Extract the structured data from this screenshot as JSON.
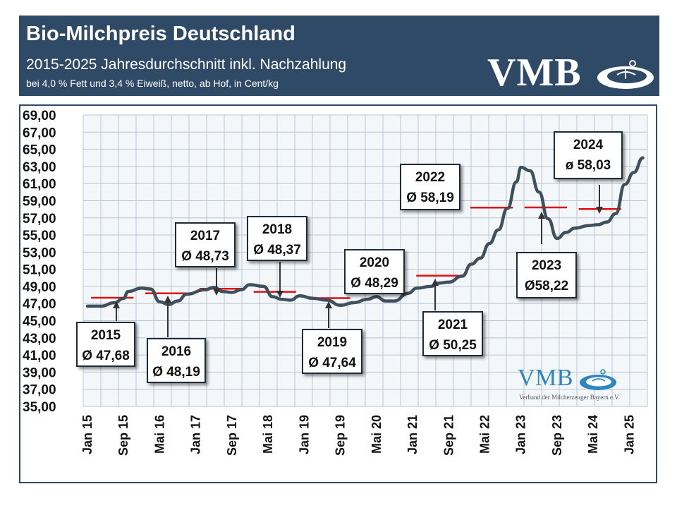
{
  "header": {
    "title": "Bio-Milchpreis Deutschland",
    "subtitle": "2015-2025 Jahresdurchschnitt inkl. Nachzahlung",
    "note": "bei 4,0 % Fett und 3,4 % Eiweiß, netto, ab Hof, in Cent/kg",
    "logo_text": "VMB"
  },
  "logo_bottom": {
    "text": "VMB",
    "tagline": "Verband der Milcherzeuger Bayern e.V."
  },
  "colors": {
    "header_bg": "#2f4a66",
    "line": "#3f4f5c",
    "average": "#e01010",
    "plot_bg": "#f3f7fa",
    "grid": "#b9c6d1"
  },
  "chart_data": {
    "type": "line",
    "title": "Bio-Milchpreis Deutschland",
    "y_unit": "Cent/kg",
    "ylim": [
      35,
      69
    ],
    "grid": true,
    "y_ticks": [
      "35,00",
      "37,00",
      "39,00",
      "41,00",
      "43,00",
      "45,00",
      "47,00",
      "49,00",
      "51,00",
      "53,00",
      "55,00",
      "57,00",
      "59,00",
      "61,00",
      "63,00",
      "65,00",
      "67,00",
      "69,00"
    ],
    "x_ticks": [
      "Jan 15",
      "Sep 15",
      "Mai 16",
      "Jan 17",
      "Sep 17",
      "Mai 18",
      "Jan 19",
      "Sep 19",
      "Mai 20",
      "Jan 21",
      "Sep 21",
      "Mai 22",
      "Jan 23",
      "Sep 23",
      "Mai 24",
      "Jan 25"
    ],
    "series": [
      {
        "values_by_month": [
          {
            "x": "2015-01",
            "y": 46.7
          },
          {
            "x": "2015-04",
            "y": 46.7
          },
          {
            "x": "2015-07",
            "y": 47.1
          },
          {
            "x": "2015-09",
            "y": 47.6
          },
          {
            "x": "2015-10",
            "y": 48.4
          },
          {
            "x": "2016-01",
            "y": 48.8
          },
          {
            "x": "2016-03",
            "y": 48.7
          },
          {
            "x": "2016-05",
            "y": 47.2
          },
          {
            "x": "2016-07",
            "y": 46.9
          },
          {
            "x": "2016-09",
            "y": 47.3
          },
          {
            "x": "2016-11",
            "y": 48.1
          },
          {
            "x": "2017-03",
            "y": 48.6
          },
          {
            "x": "2017-05",
            "y": 48.9
          },
          {
            "x": "2017-07",
            "y": 48.4
          },
          {
            "x": "2017-09",
            "y": 48.3
          },
          {
            "x": "2017-11",
            "y": 48.6
          },
          {
            "x": "2018-01",
            "y": 49.2
          },
          {
            "x": "2018-04",
            "y": 49.0
          },
          {
            "x": "2018-06",
            "y": 47.8
          },
          {
            "x": "2018-08",
            "y": 47.5
          },
          {
            "x": "2018-10",
            "y": 47.4
          },
          {
            "x": "2018-12",
            "y": 47.9
          },
          {
            "x": "2019-03",
            "y": 47.6
          },
          {
            "x": "2019-06",
            "y": 47.4
          },
          {
            "x": "2019-09",
            "y": 46.8
          },
          {
            "x": "2019-12",
            "y": 47.1
          },
          {
            "x": "2020-03",
            "y": 47.5
          },
          {
            "x": "2020-05",
            "y": 47.8
          },
          {
            "x": "2020-07",
            "y": 47.3
          },
          {
            "x": "2020-09",
            "y": 47.3
          },
          {
            "x": "2020-12",
            "y": 48.2
          },
          {
            "x": "2021-02",
            "y": 48.8
          },
          {
            "x": "2021-05",
            "y": 49.0
          },
          {
            "x": "2021-07",
            "y": 49.4
          },
          {
            "x": "2021-09",
            "y": 49.5
          },
          {
            "x": "2021-12",
            "y": 50.2
          },
          {
            "x": "2022-02",
            "y": 51.6
          },
          {
            "x": "2022-04",
            "y": 52.3
          },
          {
            "x": "2022-06",
            "y": 54.0
          },
          {
            "x": "2022-08",
            "y": 55.6
          },
          {
            "x": "2022-10",
            "y": 58.1
          },
          {
            "x": "2022-12",
            "y": 61.2
          },
          {
            "x": "2023-01",
            "y": 62.9
          },
          {
            "x": "2023-03",
            "y": 62.5
          },
          {
            "x": "2023-05",
            "y": 60.0
          },
          {
            "x": "2023-07",
            "y": 56.9
          },
          {
            "x": "2023-09",
            "y": 54.6
          },
          {
            "x": "2023-11",
            "y": 55.3
          },
          {
            "x": "2024-01",
            "y": 55.8
          },
          {
            "x": "2024-04",
            "y": 56.1
          },
          {
            "x": "2024-06",
            "y": 56.2
          },
          {
            "x": "2024-08",
            "y": 56.5
          },
          {
            "x": "2024-10",
            "y": 57.5
          },
          {
            "x": "2024-12",
            "y": 60.9
          },
          {
            "x": "2025-02",
            "y": 62.3
          },
          {
            "x": "2025-04",
            "y": 64.0
          }
        ]
      }
    ],
    "annual_averages": [
      {
        "year": "2015",
        "label": "Ø 47,68",
        "value": 47.68
      },
      {
        "year": "2016",
        "label": "Ø 48,19",
        "value": 48.19
      },
      {
        "year": "2017",
        "label": "Ø 48,73",
        "value": 48.73
      },
      {
        "year": "2018",
        "label": "Ø 48,37",
        "value": 48.37
      },
      {
        "year": "2019",
        "label": "Ø 47,64",
        "value": 47.64
      },
      {
        "year": "2020",
        "label": "Ø 48,29",
        "value": 48.29
      },
      {
        "year": "2021",
        "label": "Ø 50,25",
        "value": 50.25
      },
      {
        "year": "2022",
        "label": "Ø 58,19",
        "value": 58.19
      },
      {
        "year": "2023",
        "label": "Ø58,22",
        "value": 58.22
      },
      {
        "year": "2024",
        "label": "ø 58,03",
        "value": 58.03
      }
    ]
  }
}
